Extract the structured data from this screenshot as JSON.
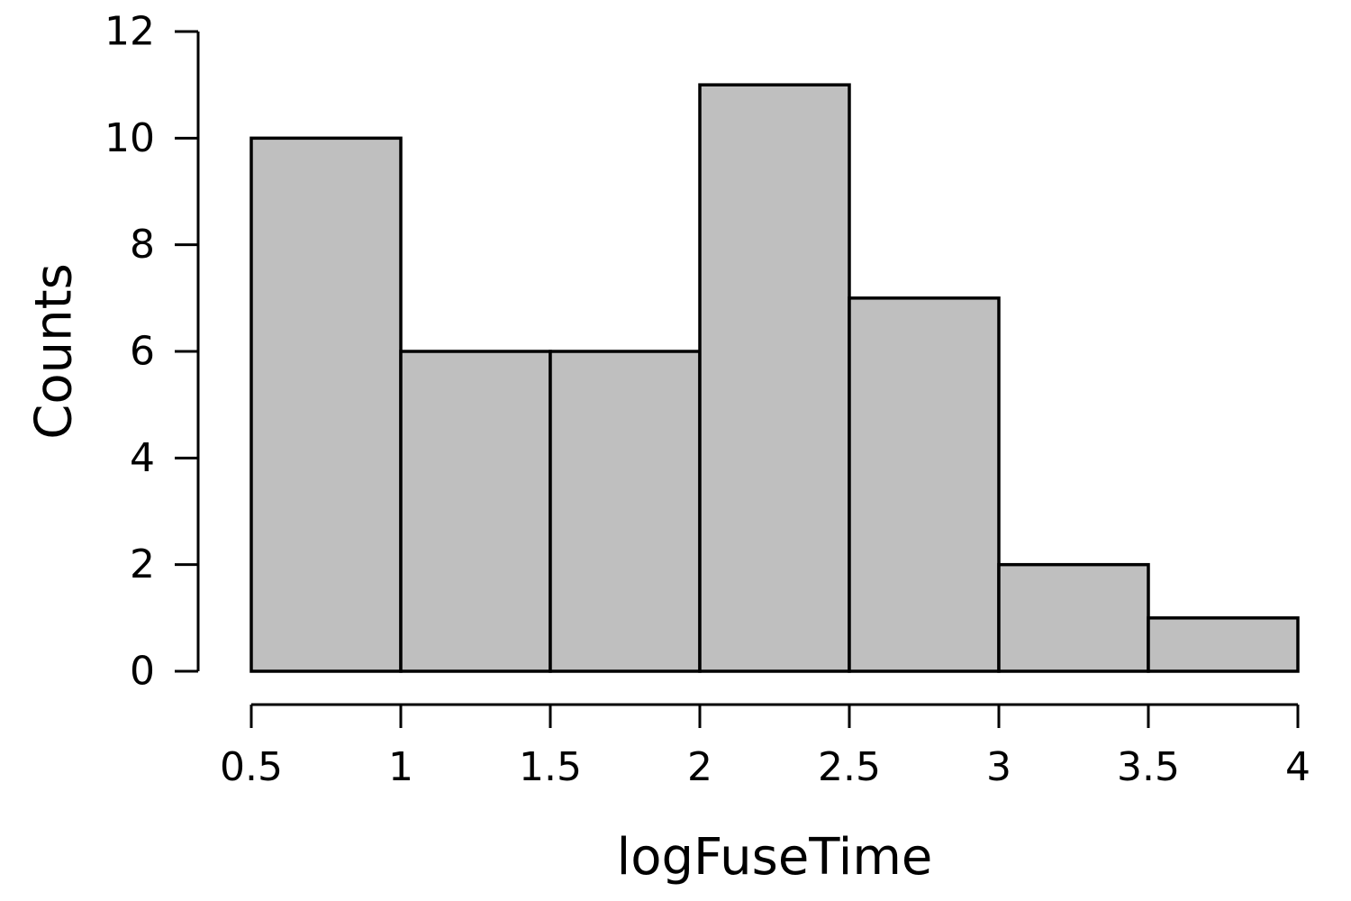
{
  "chart_data": {
    "type": "bar",
    "subtype": "histogram",
    "bin_edges": [
      0.5,
      1,
      1.5,
      2,
      2.5,
      3,
      3.5,
      4
    ],
    "values": [
      10,
      6,
      6,
      11,
      7,
      2,
      1
    ],
    "xlabel": "logFuseTime",
    "ylabel": "Counts",
    "xlim": [
      0.5,
      4
    ],
    "ylim": [
      0,
      12
    ],
    "x_ticks": [
      0.5,
      1,
      1.5,
      2,
      2.5,
      3,
      3.5,
      4
    ],
    "x_tick_labels": [
      "0.5",
      "1",
      "1.5",
      "2",
      "2.5",
      "3",
      "3.5",
      "4"
    ],
    "y_ticks": [
      0,
      2,
      4,
      6,
      8,
      10,
      12
    ],
    "y_tick_labels": [
      "0",
      "2",
      "4",
      "6",
      "8",
      "10",
      "12"
    ],
    "grid": false,
    "legend": "none",
    "bar_color": "#bfbfbf",
    "edge_color": "#000000"
  }
}
